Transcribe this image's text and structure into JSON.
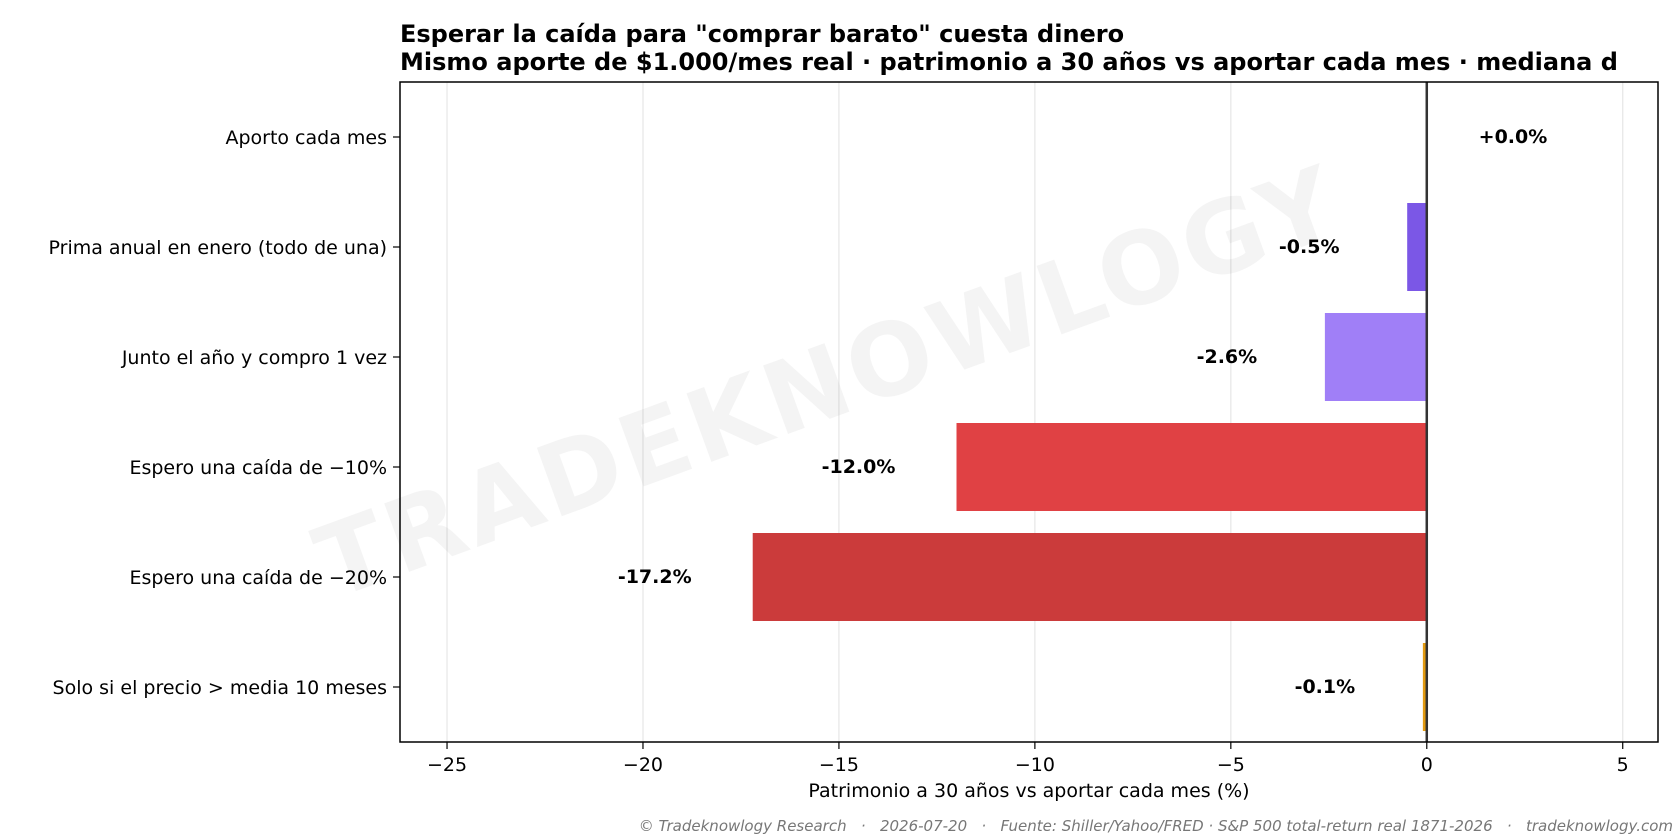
{
  "chart_data": {
    "type": "bar",
    "orientation": "horizontal",
    "title": "Esperar la caída para \"comprar barato\" cuesta dinero",
    "subtitle": "Mismo aporte de $1.000/mes real · patrimonio a 30 años vs aportar cada mes · mediana d",
    "xlabel": "Patrimonio a 30 años vs aportar cada mes (%)",
    "ylabel": "",
    "xlim": [
      -26.2,
      5.9
    ],
    "xticks": [
      -25,
      -20,
      -15,
      -10,
      -5,
      0,
      5
    ],
    "xtick_labels": [
      "−25",
      "−20",
      "−15",
      "−10",
      "−5",
      "0",
      "5"
    ],
    "grid": "x",
    "categories": [
      "Aporto cada mes",
      "Prima anual en enero (todo de una)",
      "Junto el año y compro 1 vez",
      "Espero una caída de −10%",
      "Espero una caída de −20%",
      "Solo si el precio > media 10 meses"
    ],
    "values": [
      0.0,
      -0.5,
      -2.6,
      -12.0,
      -17.2,
      -0.1
    ],
    "value_labels": [
      "+0.0%",
      "-0.5%",
      "-2.6%",
      "-12.0%",
      "-17.2%",
      "-0.1%"
    ],
    "colors": [
      "#9aa0a6",
      "#7b57e6",
      "#a07ff7",
      "#e04144",
      "#cb3b3b",
      "#e39b12"
    ]
  },
  "watermark": "TRADEKNOWLOGY",
  "footer": "© Tradeknowlogy Research   ·   2026-07-20   ·   Fuente: Shiller/Yahoo/FRED · S&P 500 total-return real 1871-2026   ·   tradeknowlogy.com"
}
